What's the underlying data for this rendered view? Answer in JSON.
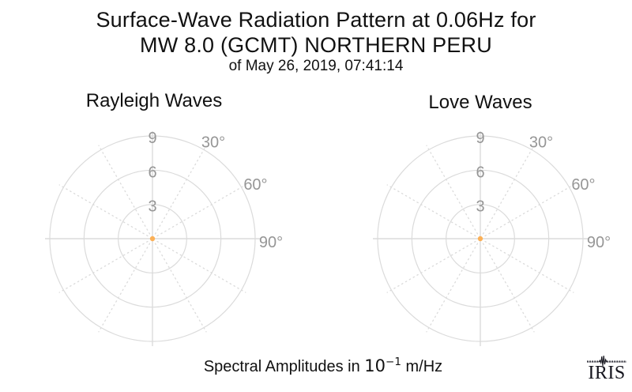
{
  "title": {
    "line1": "Surface-Wave Radiation Pattern at 0.06Hz for",
    "line2": "MW 8.0 (GCMT) NORTHERN PERU",
    "line3": "of May 26, 2019, 07:41:14"
  },
  "caption": {
    "prefix": "Spectral Amplitudes in ",
    "power_base": "10",
    "power_exponent": "−1",
    "suffix": " m/Hz"
  },
  "logo": {
    "text": "IRIS",
    "color": "#15151E"
  },
  "colors": {
    "background": "#FFFFFF",
    "title_text": "#111111",
    "grid": "#DBDBDB",
    "tick_labels": "#969696",
    "marker": "#FBB057"
  },
  "chart_data": [
    {
      "type": "polar-scatter",
      "title": "Rayleigh Waves",
      "radial_ticks": [
        3,
        6,
        9
      ],
      "radial_tick_labels": [
        "3",
        "6",
        "9"
      ],
      "rmax": 9.4,
      "angle_grid_step_deg": 30,
      "angle_labels": [
        {
          "angle_deg": 30,
          "label": "30°"
        },
        {
          "angle_deg": 60,
          "label": "60°"
        },
        {
          "angle_deg": 90,
          "label": "90°"
        }
      ],
      "grid_color": "#DBDBDB",
      "label_color": "#969696",
      "series": [
        {
          "name": "rayleigh-radiation-pattern",
          "marker": "point",
          "color": "#FBB057",
          "points": [
            {
              "azimuth_deg": 0,
              "amplitude": 0
            }
          ]
        }
      ]
    },
    {
      "type": "polar-scatter",
      "title": "Love Waves",
      "radial_ticks": [
        3,
        6,
        9
      ],
      "radial_tick_labels": [
        "3",
        "6",
        "9"
      ],
      "rmax": 9.4,
      "angle_grid_step_deg": 30,
      "angle_labels": [
        {
          "angle_deg": 30,
          "label": "30°"
        },
        {
          "angle_deg": 60,
          "label": "60°"
        },
        {
          "angle_deg": 90,
          "label": "90°"
        }
      ],
      "grid_color": "#DBDBDB",
      "label_color": "#969696",
      "series": [
        {
          "name": "love-radiation-pattern",
          "marker": "point",
          "color": "#FBB057",
          "points": [
            {
              "azimuth_deg": 0,
              "amplitude": 0
            }
          ]
        }
      ]
    }
  ]
}
